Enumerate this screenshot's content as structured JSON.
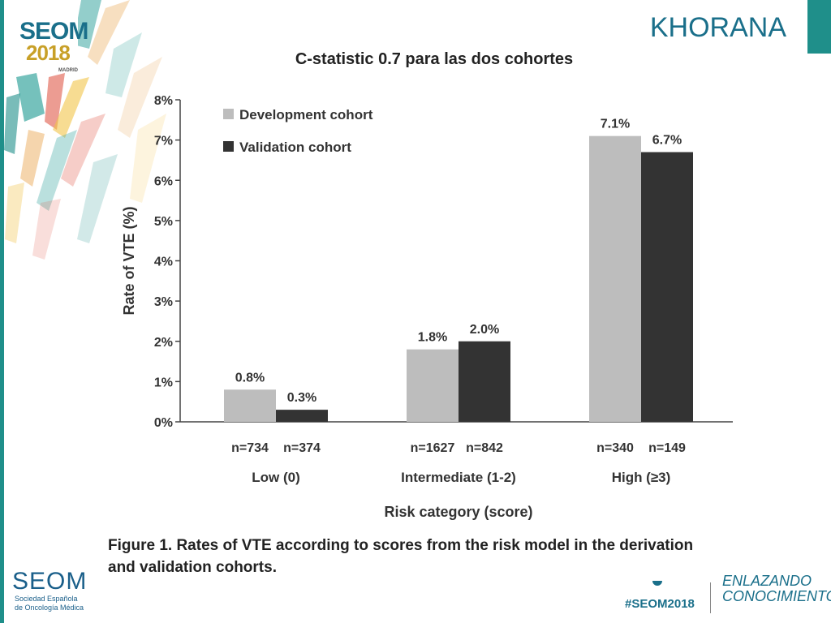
{
  "slide": {
    "topic": "KHORANA",
    "subtitle": "C-statistic 0.7 para las dos cohortes",
    "caption_line1": "Figure 1. Rates of VTE according to scores from the risk model in the derivation",
    "caption_line2": "and validation cohorts."
  },
  "branding": {
    "logo_name": "SEOM",
    "logo_year": "2018",
    "logo_city": "MADRID",
    "bottom_logo": "SEOM",
    "bottom_sub_line1": "Sociedad Española",
    "bottom_sub_line2": "de Oncología Médica",
    "hashtag": "#SEOM2018",
    "slogan_line1": "ENLAZANDO",
    "slogan_line2": "CONOCIMIENTO"
  },
  "colors": {
    "accent": "#1a6f8a",
    "teal": "#1f8f8a",
    "development": "#bdbdbd",
    "validation": "#333333"
  },
  "chart_data": {
    "type": "bar",
    "title": "",
    "xlabel": "Risk category (score)",
    "ylabel": "Rate of VTE (%)",
    "ylim": [
      0,
      8
    ],
    "yticks": [
      "0%",
      "1%",
      "2%",
      "3%",
      "4%",
      "5%",
      "6%",
      "7%",
      "8%"
    ],
    "grid": false,
    "legend": "top-left",
    "categories": [
      "Low (0)",
      "Intermediate (1-2)",
      "High (≥3)"
    ],
    "series": [
      {
        "name": "Development cohort",
        "values": [
          0.8,
          1.8,
          7.1
        ],
        "labels": [
          "0.8%",
          "1.8%",
          "7.1%"
        ],
        "n": [
          "n=734",
          "n=1627",
          "n=340"
        ]
      },
      {
        "name": "Validation cohort",
        "values": [
          0.3,
          2.0,
          6.7
        ],
        "labels": [
          "0.3%",
          "2.0%",
          "6.7%"
        ],
        "n": [
          "n=374",
          "n=842",
          "n=149"
        ]
      }
    ]
  }
}
